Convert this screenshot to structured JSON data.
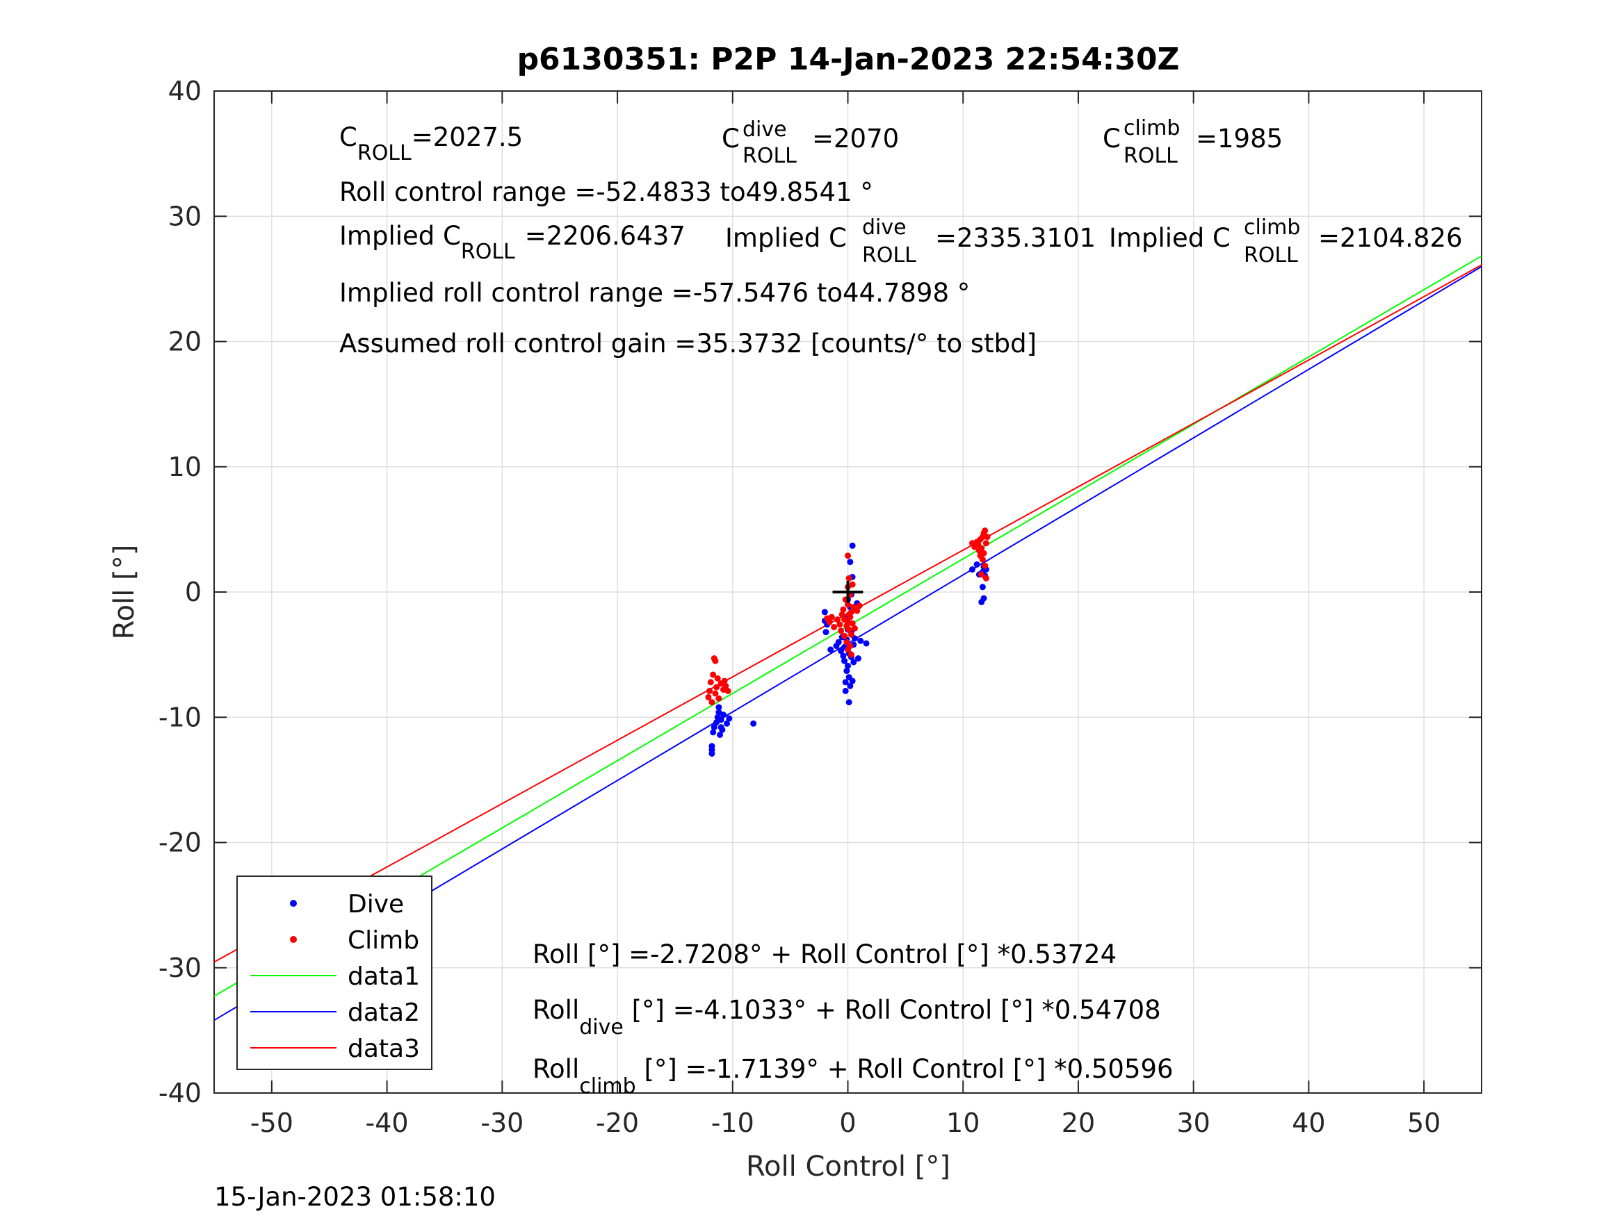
{
  "chart_data": {
    "type": "scatter",
    "title": "p6130351: P2P 14-Jan-2023 22:54:30Z",
    "xlabel": "Roll Control [°]",
    "ylabel": "Roll [°]",
    "xlim": [
      -55,
      55
    ],
    "ylim": [
      -40,
      40
    ],
    "xticks": [
      -50,
      -40,
      -30,
      -20,
      -10,
      0,
      10,
      20,
      30,
      40,
      50
    ],
    "yticks": [
      -40,
      -30,
      -20,
      -10,
      0,
      10,
      20,
      30,
      40
    ],
    "grid": true,
    "legend_position": "bottom-left",
    "timestamp": "15-Jan-2023 01:58:10",
    "legend": [
      {
        "label": "Dive",
        "kind": "marker",
        "color": "#0000ff"
      },
      {
        "label": "Climb",
        "kind": "marker",
        "color": "#ff0000"
      },
      {
        "label": "data1",
        "kind": "line",
        "color": "#00ff00"
      },
      {
        "label": "data2",
        "kind": "line",
        "color": "#0000ff"
      },
      {
        "label": "data3",
        "kind": "line",
        "color": "#ff0000"
      }
    ],
    "fit_lines": [
      {
        "name": "data1",
        "color": "#00ff00",
        "intercept": -2.7208,
        "slope": 0.53724
      },
      {
        "name": "data2",
        "color": "#0000ff",
        "intercept": -4.1033,
        "slope": 0.54708
      },
      {
        "name": "data3",
        "color": "#ff0000",
        "intercept": -1.7139,
        "slope": 0.50596
      }
    ],
    "series": [
      {
        "name": "Dive",
        "color": "#0000ff",
        "points": [
          [
            -11.8,
            -12.9
          ],
          [
            -11.8,
            -12.6
          ],
          [
            -11.8,
            -12.3
          ],
          [
            -11.7,
            -11.2
          ],
          [
            -11.6,
            -10.8
          ],
          [
            -11.4,
            -10.4
          ],
          [
            -11.3,
            -10.0
          ],
          [
            -11.2,
            -9.6
          ],
          [
            -11.2,
            -9.2
          ],
          [
            -11.1,
            -11.4
          ],
          [
            -11.0,
            -10.8
          ],
          [
            -11.0,
            -10.2
          ],
          [
            -10.9,
            -11.0
          ],
          [
            -10.8,
            -9.8
          ],
          [
            -10.5,
            -10.5
          ],
          [
            -10.3,
            -10.1
          ],
          [
            -8.2,
            -10.5
          ],
          [
            -2.0,
            -2.3
          ],
          [
            -2.0,
            -1.6
          ],
          [
            -1.9,
            -3.2
          ],
          [
            -1.8,
            -2.6
          ],
          [
            -1.5,
            -4.6
          ],
          [
            -1.0,
            -4.3
          ],
          [
            -0.8,
            -4.0
          ],
          [
            -0.6,
            -4.7
          ],
          [
            -0.5,
            -3.6
          ],
          [
            -0.4,
            -5.1
          ],
          [
            -0.3,
            -5.5
          ],
          [
            -0.3,
            -4.4
          ],
          [
            -0.2,
            -7.2
          ],
          [
            -0.2,
            -7.9
          ],
          [
            -0.1,
            -3.8
          ],
          [
            -0.1,
            -6.3
          ],
          [
            0.0,
            -5.9
          ],
          [
            0.0,
            -2.0
          ],
          [
            0.0,
            -0.6
          ],
          [
            0.0,
            -3.0
          ],
          [
            0.1,
            -8.8
          ],
          [
            0.1,
            -6.8
          ],
          [
            0.1,
            -4.9
          ],
          [
            0.2,
            -7.5
          ],
          [
            0.2,
            -1.2
          ],
          [
            0.2,
            2.4
          ],
          [
            0.3,
            -5.2
          ],
          [
            0.3,
            -3.2
          ],
          [
            0.3,
            -0.2
          ],
          [
            0.4,
            3.7
          ],
          [
            0.4,
            1.2
          ],
          [
            0.4,
            -7.1
          ],
          [
            0.5,
            -5.6
          ],
          [
            0.5,
            -4.2
          ],
          [
            0.6,
            -3.7
          ],
          [
            0.8,
            -0.9
          ],
          [
            0.9,
            -5.3
          ],
          [
            1.1,
            -3.9
          ],
          [
            1.6,
            -4.1
          ],
          [
            10.8,
            1.8
          ],
          [
            11.2,
            2.2
          ],
          [
            11.4,
            1.4
          ],
          [
            11.6,
            -0.8
          ],
          [
            11.7,
            0.4
          ],
          [
            11.7,
            1.6
          ],
          [
            11.8,
            -0.5
          ],
          [
            11.8,
            2.0
          ],
          [
            11.9,
            1.3
          ],
          [
            12.0,
            1.8
          ]
        ]
      },
      {
        "name": "Climb",
        "color": "#ff0000",
        "points": [
          [
            -12.1,
            -8.4
          ],
          [
            -12.0,
            -7.9
          ],
          [
            -11.9,
            -7.2
          ],
          [
            -11.8,
            -8.8
          ],
          [
            -11.7,
            -6.6
          ],
          [
            -11.6,
            -5.3
          ],
          [
            -11.5,
            -5.5
          ],
          [
            -11.5,
            -8.1
          ],
          [
            -11.4,
            -7.6
          ],
          [
            -11.3,
            -6.9
          ],
          [
            -11.2,
            -8.5
          ],
          [
            -11.0,
            -7.3
          ],
          [
            -10.8,
            -7.8
          ],
          [
            -10.7,
            -7.1
          ],
          [
            -10.6,
            -7.5
          ],
          [
            -10.4,
            -7.9
          ],
          [
            -1.8,
            -2.1
          ],
          [
            -1.6,
            -2.4
          ],
          [
            -1.4,
            -2.0
          ],
          [
            -1.2,
            -2.8
          ],
          [
            -0.9,
            -2.2
          ],
          [
            -0.7,
            -2.6
          ],
          [
            -0.6,
            -3.1
          ],
          [
            -0.5,
            -1.8
          ],
          [
            -0.4,
            -1.4
          ],
          [
            -0.3,
            -3.5
          ],
          [
            -0.3,
            -2.2
          ],
          [
            -0.2,
            -0.6
          ],
          [
            -0.1,
            -2.7
          ],
          [
            -0.1,
            -4.0
          ],
          [
            0.0,
            -1.0
          ],
          [
            0.0,
            -2.4
          ],
          [
            0.0,
            0.4
          ],
          [
            0.0,
            -4.6
          ],
          [
            0.1,
            -1.8
          ],
          [
            0.1,
            -3.0
          ],
          [
            0.1,
            1.1
          ],
          [
            0.2,
            -2.0
          ],
          [
            0.2,
            -0.2
          ],
          [
            0.2,
            -4.3
          ],
          [
            0.3,
            -1.6
          ],
          [
            0.3,
            -5.0
          ],
          [
            0.3,
            -3.4
          ],
          [
            0.4,
            0.6
          ],
          [
            0.4,
            -2.5
          ],
          [
            0.5,
            -1.2
          ],
          [
            0.6,
            -2.9
          ],
          [
            0.8,
            -1.5
          ],
          [
            1.0,
            -1.1
          ],
          [
            0.0,
            2.9
          ],
          [
            10.8,
            3.9
          ],
          [
            11.0,
            3.6
          ],
          [
            11.2,
            4.0
          ],
          [
            11.3,
            3.8
          ],
          [
            11.4,
            3.3
          ],
          [
            11.5,
            2.9
          ],
          [
            11.5,
            4.2
          ],
          [
            11.6,
            3.5
          ],
          [
            11.6,
            1.4
          ],
          [
            11.7,
            4.4
          ],
          [
            11.7,
            2.6
          ],
          [
            11.8,
            3.1
          ],
          [
            11.8,
            4.7
          ],
          [
            11.9,
            4.9
          ],
          [
            11.9,
            2.1
          ],
          [
            12.0,
            3.9
          ],
          [
            12.0,
            1.1
          ],
          [
            12.1,
            4.4
          ]
        ]
      }
    ],
    "center_marker": {
      "x": 0,
      "y": 0,
      "color": "#000000"
    }
  },
  "annotations": {
    "c_roll": {
      "main": "C",
      "sub": "ROLL",
      "value": "=2027.5"
    },
    "c_roll_dive": {
      "main": "C",
      "sup": "dive",
      "sub": "ROLL",
      "value": "=2070"
    },
    "c_roll_climb": {
      "main": "C",
      "sup": "climb",
      "sub": "ROLL",
      "value": "=1985"
    },
    "roll_control_range": "Roll control range =-52.4833 to49.8541 °",
    "implied_c_roll": {
      "main": "Implied C",
      "sub": "ROLL",
      "value": "=2206.6437"
    },
    "implied_c_roll_dive": {
      "main": "Implied C",
      "sup": "dive",
      "sub": "ROLL",
      "value": "=2335.3101"
    },
    "implied_c_roll_climb": {
      "main": "Implied C",
      "sup": "climb",
      "sub": "ROLL",
      "value": "=2104.826"
    },
    "implied_range": "Implied roll control range =-57.5476 to44.7898 °",
    "assumed_gain": "Assumed roll control gain =35.3732 [counts/° to stbd]",
    "eq_all": {
      "main": "Roll",
      "sub": "",
      "value": " [°] =-2.7208° + Roll Control [°] *0.53724"
    },
    "eq_dive": {
      "main": "Roll",
      "sub": "dive",
      "value": " [°] =-4.1033° + Roll Control [°] *0.54708"
    },
    "eq_climb": {
      "main": "Roll",
      "sub": "climb",
      "value": " [°] =-1.7139° + Roll Control [°] *0.50596"
    }
  }
}
